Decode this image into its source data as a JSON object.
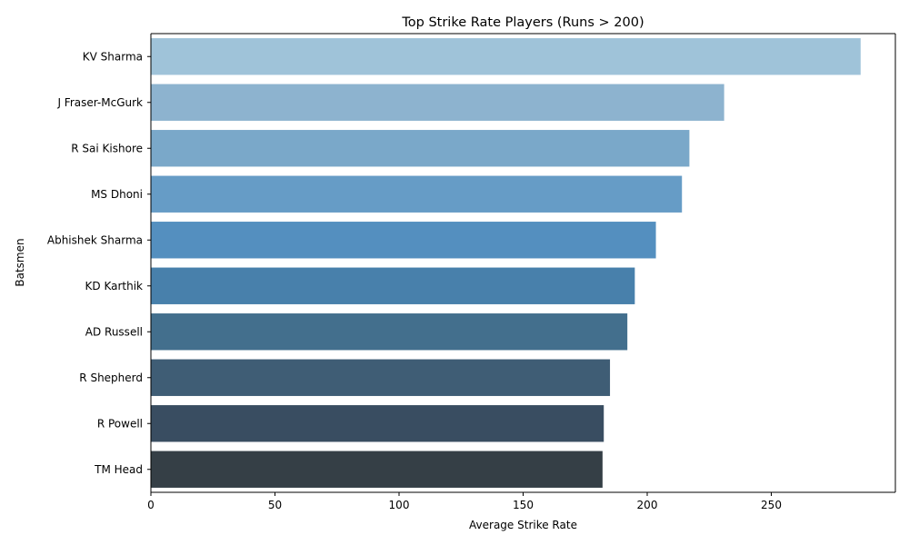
{
  "chart_data": {
    "type": "bar",
    "orientation": "horizontal",
    "title": "Top Strike Rate Players (Runs > 200)",
    "xlabel": "Average Strike Rate",
    "ylabel": "Batsmen",
    "categories": [
      "KV Sharma",
      "J Fraser-McGurk",
      "R Sai Kishore",
      "MS Dhoni",
      "Abhishek Sharma",
      "KD Karthik",
      "AD Russell",
      "R Shepherd",
      "R Powell",
      "TM Head"
    ],
    "values": [
      286,
      231,
      217,
      214,
      203.5,
      195,
      192,
      185,
      182.5,
      182
    ],
    "colors": [
      "#9fc3d9",
      "#8db3cf",
      "#7aa8c9",
      "#669cc6",
      "#548fbf",
      "#4880ab",
      "#436f8d",
      "#3f5d75",
      "#394d61",
      "#353f46"
    ],
    "xlim": [
      0,
      300
    ],
    "xticks": [
      0,
      50,
      100,
      150,
      200,
      250
    ],
    "grid": false,
    "legend": "none"
  }
}
